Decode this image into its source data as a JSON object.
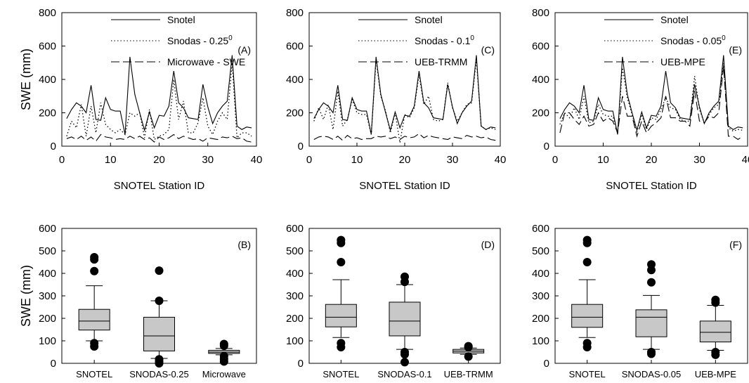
{
  "chart_data": [
    {
      "type": "line",
      "panel_label": "(A)",
      "xlabel": "SNOTEL Station ID",
      "ylabel": "SWE (mm)",
      "xlim": [
        0,
        40
      ],
      "ylim": [
        0,
        800
      ],
      "xticks": [
        "0",
        "10",
        "20",
        "30",
        "40"
      ],
      "yticks": [
        "0",
        "200",
        "400",
        "600",
        "800"
      ],
      "grid": false,
      "legend": "top-right",
      "x": [
        1,
        2,
        3,
        4,
        5,
        6,
        7,
        8,
        9,
        10,
        11,
        12,
        13,
        14,
        15,
        16,
        17,
        18,
        19,
        20,
        21,
        22,
        23,
        24,
        25,
        26,
        27,
        28,
        29,
        30,
        31,
        32,
        33,
        34,
        35,
        36,
        37,
        38,
        39
      ],
      "series": [
        {
          "name": "Snotel",
          "base": "Snotel",
          "sup": "",
          "style": "solid",
          "values": [
            165,
            220,
            260,
            240,
            200,
            365,
            160,
            155,
            290,
            220,
            210,
            210,
            70,
            535,
            310,
            200,
            95,
            205,
            110,
            185,
            180,
            240,
            450,
            260,
            230,
            170,
            165,
            160,
            370,
            235,
            135,
            200,
            240,
            270,
            545,
            120,
            100,
            115,
            110
          ]
        },
        {
          "name": "Snodas - 0.25",
          "base": "Snodas - 0.25",
          "sup": "0",
          "style": "dotted",
          "values": [
            60,
            150,
            110,
            250,
            60,
            240,
            80,
            260,
            130,
            100,
            80,
            100,
            70,
            200,
            180,
            200,
            50,
            220,
            40,
            60,
            70,
            100,
            400,
            160,
            270,
            80,
            80,
            140,
            290,
            120,
            70,
            150,
            200,
            160,
            500,
            50,
            80,
            80,
            60
          ]
        },
        {
          "name": "Microwave - SWE",
          "base": "Microwave - SWE",
          "sup": "",
          "style": "dashed",
          "values": [
            45,
            55,
            40,
            60,
            35,
            55,
            30,
            70,
            55,
            50,
            40,
            45,
            40,
            60,
            45,
            60,
            40,
            50,
            25,
            55,
            40,
            50,
            70,
            45,
            60,
            50,
            40,
            45,
            30,
            50,
            45,
            40,
            55,
            50,
            60,
            45,
            50,
            30,
            25
          ]
        }
      ]
    },
    {
      "type": "line",
      "panel_label": "(C)",
      "xlabel": "SNOTEL Station ID",
      "ylabel": "",
      "xlim": [
        0,
        40
      ],
      "ylim": [
        0,
        800
      ],
      "xticks": [
        "0",
        "10",
        "20",
        "30",
        "40"
      ],
      "yticks": [
        "0",
        "200",
        "400",
        "600",
        "800"
      ],
      "grid": false,
      "legend": "top-right",
      "x": [
        1,
        2,
        3,
        4,
        5,
        6,
        7,
        8,
        9,
        10,
        11,
        12,
        13,
        14,
        15,
        16,
        17,
        18,
        19,
        20,
        21,
        22,
        23,
        24,
        25,
        26,
        27,
        28,
        29,
        30,
        31,
        32,
        33,
        34,
        35,
        36,
        37,
        38,
        39
      ],
      "series": [
        {
          "name": "Snotel",
          "base": "Snotel",
          "sup": "",
          "style": "solid",
          "values": [
            165,
            220,
            260,
            240,
            200,
            365,
            160,
            155,
            290,
            220,
            210,
            210,
            70,
            535,
            310,
            200,
            95,
            205,
            110,
            185,
            180,
            240,
            450,
            260,
            230,
            170,
            165,
            160,
            370,
            235,
            135,
            200,
            240,
            270,
            545,
            120,
            100,
            115,
            110
          ]
        },
        {
          "name": "Snodas - 0.1",
          "base": "Snodas - 0.1",
          "sup": "0",
          "style": "dotted",
          "values": [
            150,
            230,
            160,
            250,
            100,
            330,
            120,
            160,
            280,
            200,
            190,
            190,
            70,
            520,
            300,
            210,
            80,
            200,
            20,
            190,
            170,
            230,
            430,
            250,
            300,
            160,
            150,
            160,
            380,
            230,
            150,
            200,
            250,
            260,
            520,
            120,
            100,
            110,
            100
          ]
        },
        {
          "name": "UEB-TRMM",
          "base": "UEB-TRMM",
          "sup": "",
          "style": "dashed",
          "values": [
            40,
            55,
            60,
            55,
            40,
            60,
            35,
            65,
            45,
            50,
            40,
            45,
            45,
            60,
            55,
            60,
            45,
            55,
            40,
            60,
            50,
            55,
            75,
            50,
            65,
            55,
            50,
            45,
            40,
            55,
            50,
            45,
            65,
            55,
            60,
            50,
            55,
            40,
            35
          ]
        }
      ]
    },
    {
      "type": "line",
      "panel_label": "(E)",
      "xlabel": "SNOTEL Station ID",
      "ylabel": "",
      "xlim": [
        0,
        40
      ],
      "ylim": [
        0,
        800
      ],
      "xticks": [
        "0",
        "10",
        "20",
        "30",
        "40"
      ],
      "yticks": [
        "0",
        "200",
        "400",
        "600",
        "800"
      ],
      "grid": false,
      "legend": "top-right",
      "x": [
        1,
        2,
        3,
        4,
        5,
        6,
        7,
        8,
        9,
        10,
        11,
        12,
        13,
        14,
        15,
        16,
        17,
        18,
        19,
        20,
        21,
        22,
        23,
        24,
        25,
        26,
        27,
        28,
        29,
        30,
        31,
        32,
        33,
        34,
        35,
        36,
        37,
        38,
        39
      ],
      "series": [
        {
          "name": "Snotel",
          "base": "Snotel",
          "sup": "",
          "style": "solid",
          "values": [
            165,
            220,
            260,
            240,
            200,
            365,
            160,
            155,
            290,
            220,
            210,
            210,
            70,
            535,
            310,
            200,
            95,
            205,
            110,
            185,
            180,
            240,
            450,
            260,
            230,
            170,
            165,
            160,
            370,
            235,
            135,
            200,
            240,
            270,
            545,
            120,
            100,
            115,
            110
          ]
        },
        {
          "name": "Snodas - 0.05",
          "base": "Snodas - 0.05",
          "sup": "0",
          "style": "dotted",
          "values": [
            130,
            200,
            170,
            230,
            160,
            300,
            140,
            150,
            250,
            190,
            180,
            180,
            80,
            470,
            290,
            190,
            90,
            190,
            100,
            170,
            160,
            220,
            290,
            230,
            220,
            160,
            150,
            150,
            420,
            220,
            140,
            190,
            230,
            250,
            500,
            110,
            90,
            100,
            95
          ]
        },
        {
          "name": "UEB-MPE",
          "base": "UEB-MPE",
          "sup": "",
          "style": "dashed",
          "values": [
            80,
            200,
            200,
            160,
            130,
            180,
            120,
            130,
            200,
            150,
            170,
            150,
            80,
            300,
            180,
            180,
            60,
            150,
            80,
            120,
            140,
            170,
            300,
            170,
            170,
            150,
            150,
            120,
            330,
            150,
            140,
            180,
            170,
            200,
            480,
            60,
            60,
            40,
            60
          ]
        }
      ]
    },
    {
      "type": "box",
      "panel_label": "(B)",
      "xlabel": "",
      "ylabel": "SWE (mm)",
      "ylim": [
        0,
        600
      ],
      "yticks": [
        "0",
        "100",
        "200",
        "300",
        "400",
        "500",
        "600"
      ],
      "grid": false,
      "categories": [
        "SNOTEL",
        "SNODAS-0.25",
        "Microwave"
      ],
      "boxes": [
        {
          "min": 100,
          "q1": 148,
          "median": 188,
          "q3": 240,
          "max": 345,
          "outliers": [
            75,
            90,
            410,
            462,
            472
          ]
        },
        {
          "min": 22,
          "q1": 55,
          "median": 122,
          "q3": 205,
          "max": 278,
          "outliers": [
            0,
            8,
            18,
            278,
            412
          ]
        },
        {
          "min": 38,
          "q1": 44,
          "median": 50,
          "q3": 58,
          "max": 66,
          "outliers": [
            8,
            20,
            32,
            78,
            86
          ]
        }
      ]
    },
    {
      "type": "box",
      "panel_label": "(D)",
      "xlabel": "",
      "ylabel": "",
      "ylim": [
        0,
        600
      ],
      "yticks": [
        "0",
        "100",
        "200",
        "300",
        "400",
        "500",
        "600"
      ],
      "grid": false,
      "categories": [
        "SNOTEL",
        "SNODAS-0.1",
        "UEB-TRMM"
      ],
      "boxes": [
        {
          "min": 115,
          "q1": 162,
          "median": 205,
          "q3": 262,
          "max": 372,
          "outliers": [
            72,
            90,
            450,
            535,
            548
          ]
        },
        {
          "min": 62,
          "q1": 122,
          "median": 188,
          "q3": 272,
          "max": 350,
          "outliers": [
            5,
            40,
            50,
            362,
            385
          ]
        },
        {
          "min": 40,
          "q1": 46,
          "median": 54,
          "q3": 62,
          "max": 68,
          "outliers": [
            30,
            72,
            76
          ]
        }
      ]
    },
    {
      "type": "box",
      "panel_label": "(F)",
      "xlabel": "",
      "ylabel": "",
      "ylim": [
        0,
        600
      ],
      "yticks": [
        "0",
        "100",
        "200",
        "300",
        "400",
        "500",
        "600"
      ],
      "grid": false,
      "categories": [
        "SNOTEL",
        "SNODAS-0.05",
        "UEB-MPE"
      ],
      "boxes": [
        {
          "min": 115,
          "q1": 160,
          "median": 205,
          "q3": 262,
          "max": 372,
          "outliers": [
            72,
            90,
            450,
            535,
            548
          ]
        },
        {
          "min": 62,
          "q1": 118,
          "median": 205,
          "q3": 238,
          "max": 302,
          "outliers": [
            42,
            50,
            360,
            415,
            440
          ]
        },
        {
          "min": 58,
          "q1": 95,
          "median": 138,
          "q3": 188,
          "max": 258,
          "outliers": [
            38,
            50,
            270,
            282
          ]
        }
      ]
    }
  ]
}
